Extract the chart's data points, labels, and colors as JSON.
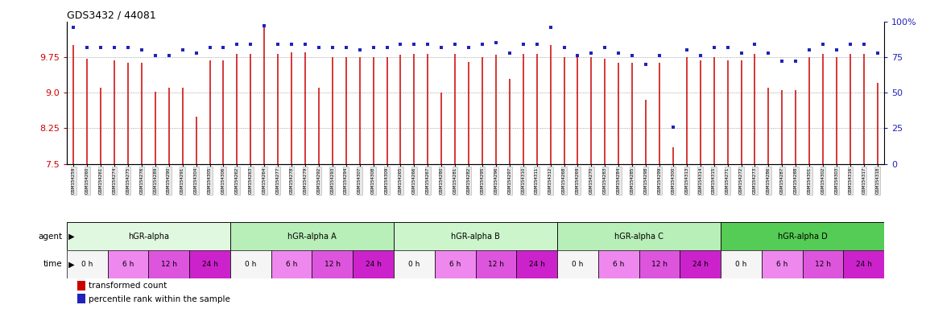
{
  "title": "GDS3432 / 44081",
  "samples": [
    "GSM154259",
    "GSM154260",
    "GSM154261",
    "GSM154274",
    "GSM154275",
    "GSM154276",
    "GSM154289",
    "GSM154290",
    "GSM154291",
    "GSM154304",
    "GSM154305",
    "GSM154306",
    "GSM154262",
    "GSM154263",
    "GSM154264",
    "GSM154277",
    "GSM154278",
    "GSM154279",
    "GSM154292",
    "GSM154293",
    "GSM154294",
    "GSM154307",
    "GSM154308",
    "GSM154309",
    "GSM154265",
    "GSM154266",
    "GSM154267",
    "GSM154280",
    "GSM154281",
    "GSM154282",
    "GSM154295",
    "GSM154296",
    "GSM154297",
    "GSM154310",
    "GSM154311",
    "GSM154312",
    "GSM154268",
    "GSM154269",
    "GSM154270",
    "GSM154283",
    "GSM154284",
    "GSM154285",
    "GSM154298",
    "GSM154299",
    "GSM154300",
    "GSM154313",
    "GSM154314",
    "GSM154315",
    "GSM154271",
    "GSM154272",
    "GSM154273",
    "GSM154286",
    "GSM154287",
    "GSM154288",
    "GSM154301",
    "GSM154302",
    "GSM154303",
    "GSM154316",
    "GSM154317",
    "GSM154318"
  ],
  "bar_values": [
    10.0,
    9.72,
    9.1,
    9.68,
    9.64,
    9.64,
    9.02,
    9.1,
    9.1,
    8.5,
    9.68,
    9.68,
    9.82,
    9.82,
    10.45,
    9.82,
    9.85,
    9.85,
    9.1,
    9.75,
    9.75,
    9.75,
    9.75,
    9.75,
    9.8,
    9.82,
    9.82,
    9.0,
    9.82,
    9.65,
    9.75,
    9.8,
    9.3,
    9.82,
    9.82,
    10.0,
    9.75,
    9.75,
    9.75,
    9.72,
    9.64,
    9.64,
    8.85,
    9.64,
    7.85,
    9.75,
    9.68,
    9.75,
    9.68,
    9.68,
    9.82,
    9.1,
    9.05,
    9.05,
    9.75,
    9.82,
    9.75,
    9.82,
    9.82,
    9.2
  ],
  "dot_values": [
    96,
    82,
    82,
    82,
    82,
    80,
    76,
    76,
    80,
    78,
    82,
    82,
    84,
    84,
    97,
    84,
    84,
    84,
    82,
    82,
    82,
    80,
    82,
    82,
    84,
    84,
    84,
    82,
    84,
    82,
    84,
    85,
    78,
    84,
    84,
    96,
    82,
    76,
    78,
    82,
    78,
    76,
    70,
    76,
    26,
    80,
    76,
    82,
    82,
    78,
    84,
    78,
    72,
    72,
    80,
    84,
    80,
    84,
    84,
    78
  ],
  "ylim": [
    7.5,
    10.5
  ],
  "yticks": [
    7.5,
    8.25,
    9.0,
    9.75
  ],
  "right_yticks": [
    0,
    25,
    50,
    75,
    100
  ],
  "right_yticklabels": [
    "0",
    "25",
    "50",
    "75",
    "100%"
  ],
  "agents": [
    {
      "label": "hGR-alpha",
      "start": 0,
      "end": 12,
      "color": "#e0f8e0"
    },
    {
      "label": "hGR-alpha A",
      "start": 12,
      "end": 24,
      "color": "#b8eeb8"
    },
    {
      "label": "hGR-alpha B",
      "start": 24,
      "end": 36,
      "color": "#ccf5cc"
    },
    {
      "label": "hGR-alpha C",
      "start": 36,
      "end": 48,
      "color": "#b8eeb8"
    },
    {
      "label": "hGR-alpha D",
      "start": 48,
      "end": 60,
      "color": "#55cc55"
    }
  ],
  "time_labels_cycle": [
    "0 h",
    "6 h",
    "12 h",
    "24 h"
  ],
  "time_colors": {
    "0 h": "#f5f5f5",
    "6 h": "#ee88ee",
    "12 h": "#dd55dd",
    "24 h": "#cc22cc"
  },
  "n_groups": 5,
  "samples_per_group": 12,
  "samples_per_time": 3,
  "bar_color": "#cc0000",
  "dot_color": "#2222bb",
  "bg_color": "#ffffff",
  "grid_color": "#888888",
  "left_tick_color": "#cc0000",
  "right_tick_color": "#2222bb",
  "sample_box_color": "#e8e8e8",
  "sample_box_edge": "#aaaaaa"
}
